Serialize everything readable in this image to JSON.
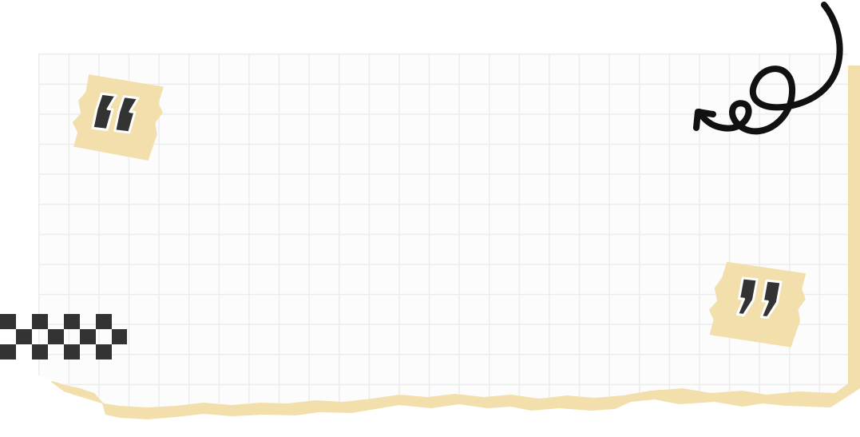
{
  "card": {
    "grid_line_color": "#f0f0f0",
    "paper_color": "#fcfcfc",
    "accent_color": "#f3dfab"
  },
  "decorations": {
    "open_quote_icon": "open-quote-icon",
    "close_quote_icon": "close-quote-icon",
    "quote_tag_color": "#f3dfab",
    "quote_glyph_color": "#333333",
    "swirl_icon": "curly-arrow-icon",
    "swirl_color": "#111111",
    "checker_icon": "checkered-strip-icon",
    "checker_color": "#333333"
  }
}
